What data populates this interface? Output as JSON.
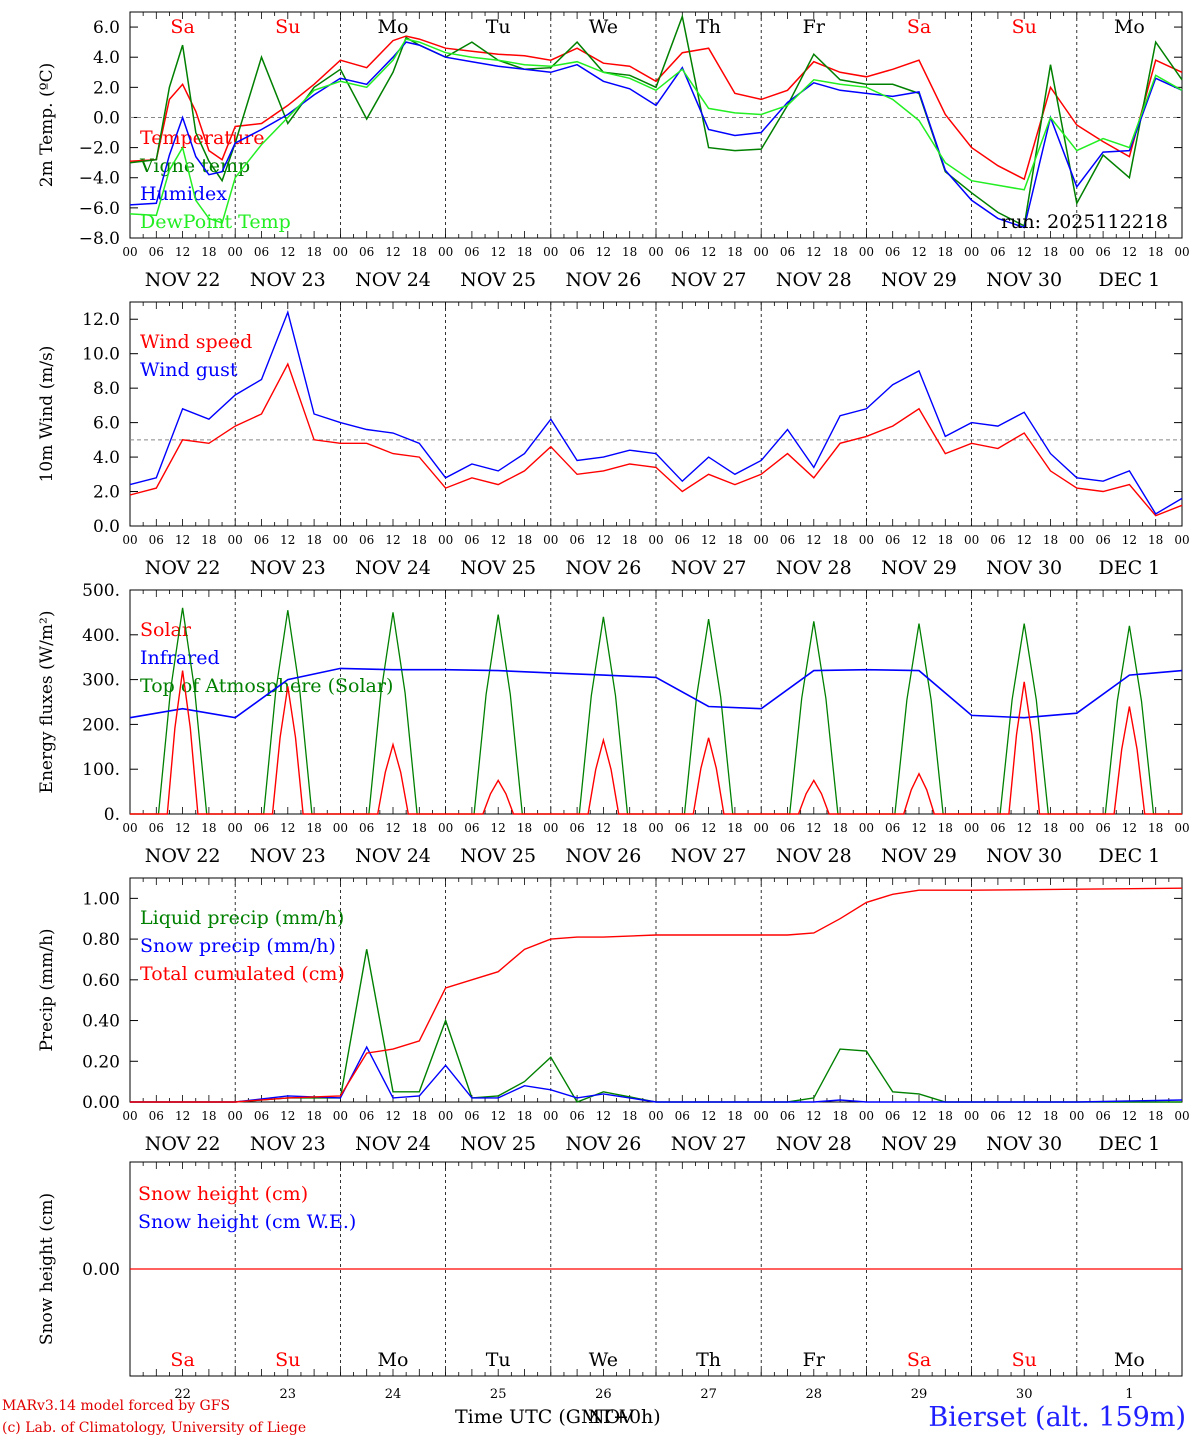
{
  "days_top": [
    {
      "label": "Sa",
      "weekend": true
    },
    {
      "label": "Su",
      "weekend": true
    },
    {
      "label": "Mo",
      "weekend": false
    },
    {
      "label": "Tu",
      "weekend": false
    },
    {
      "label": "We",
      "weekend": false
    },
    {
      "label": "Th",
      "weekend": false
    },
    {
      "label": "Fr",
      "weekend": false
    },
    {
      "label": "Sa",
      "weekend": true
    },
    {
      "label": "Su",
      "weekend": true
    },
    {
      "label": "Mo",
      "weekend": false
    }
  ],
  "date_labels": [
    "NOV 22",
    "NOV 23",
    "NOV 24",
    "NOV 25",
    "NOV 26",
    "NOV 27",
    "NOV 28",
    "NOV 29",
    "NOV 30",
    "DEC  1"
  ],
  "day_numbers": [
    "22",
    "23",
    "24",
    "25",
    "26",
    "27",
    "28",
    "29",
    "30",
    "1"
  ],
  "hour_ticks": [
    "00",
    "06",
    "12",
    "18"
  ],
  "footer": {
    "model": "MARv3.14 model forced by GFS",
    "lab": "(c) Lab. of Climatology, University of Liege",
    "xlabel": "Time UTC (GMT+0h)",
    "xlabel_overlap": "NOV",
    "station": "Bierset (alt. 159m)"
  },
  "colors": {
    "red": "#ff0000",
    "green": "#008000",
    "blue": "#0000ff",
    "lightgreen": "#22ee22",
    "weekend": "#ff0000",
    "text": "#000000"
  },
  "chart_data": [
    {
      "type": "line",
      "id": "temp",
      "ylabel": "2m Temp. (ºC)",
      "ylim": [
        -8,
        7
      ],
      "yticks": [
        6,
        4,
        2,
        0,
        -2,
        -4,
        -6,
        -8
      ],
      "ytick_labels": [
        "6.0",
        "4.0",
        "2.0",
        "0.0",
        "−2.0",
        "−4.0",
        "−6.0",
        "−8.0"
      ],
      "ref_line": 0,
      "annotation": "run: 2025112218",
      "x_hours": [
        0,
        6,
        9,
        12,
        15,
        18,
        21,
        24,
        30,
        36,
        42,
        48,
        54,
        60,
        63,
        66,
        72,
        78,
        84,
        90,
        96,
        102,
        108,
        114,
        120,
        126,
        132,
        138,
        144,
        150,
        156,
        162,
        168,
        174,
        180,
        186,
        192,
        198,
        204,
        210,
        216,
        222,
        228,
        234,
        240
      ],
      "series": [
        {
          "name": "Temperature",
          "color": "red",
          "values": [
            -2.9,
            -2.8,
            1.2,
            2.2,
            0.4,
            -2.2,
            -2.8,
            -0.6,
            -0.4,
            0.8,
            2.2,
            3.8,
            3.3,
            5.1,
            5.4,
            5.2,
            4.6,
            4.4,
            4.2,
            4.1,
            3.8,
            4.6,
            3.6,
            3.4,
            2.4,
            4.3,
            4.6,
            1.6,
            1.2,
            1.8,
            3.7,
            3.0,
            2.7,
            3.2,
            3.8,
            0.2,
            -2.0,
            -3.2,
            -4.1,
            2.0,
            -0.5,
            -1.6,
            -2.6,
            3.8,
            3.0
          ]
        },
        {
          "name": "Vigne temp",
          "color": "green",
          "values": [
            -3.0,
            -2.8,
            2.0,
            4.8,
            -1.0,
            -2.9,
            -4.2,
            -1.7,
            4.0,
            -0.4,
            2.0,
            3.2,
            -0.1,
            3.0,
            5.3,
            4.8,
            4.0,
            5.0,
            3.8,
            3.2,
            3.3,
            5.0,
            3.0,
            2.8,
            2.0,
            6.7,
            -2.0,
            -2.2,
            -2.1,
            0.8,
            4.2,
            2.5,
            2.2,
            2.2,
            1.6,
            -3.6,
            -5.0,
            -6.3,
            -7.2,
            3.5,
            -5.7,
            -2.5,
            -4.0,
            5.0,
            2.5
          ]
        },
        {
          "name": "Humidex",
          "color": "blue",
          "values": [
            -5.8,
            -5.7,
            -2.5,
            0.0,
            -2.6,
            -3.8,
            -3.6,
            -1.7,
            -0.8,
            0.2,
            1.5,
            2.6,
            2.2,
            4.0,
            5.0,
            4.8,
            4.0,
            3.7,
            3.4,
            3.2,
            3.0,
            3.5,
            2.4,
            1.9,
            0.8,
            3.3,
            -0.8,
            -1.2,
            -1.0,
            1.0,
            2.3,
            1.8,
            1.6,
            1.4,
            1.7,
            -3.5,
            -5.5,
            -6.7,
            -7.3,
            0.0,
            -4.6,
            -2.3,
            -2.2,
            2.6,
            1.8
          ]
        },
        {
          "name": "DewPoint Temp",
          "color": "lightgreen",
          "values": [
            -6.4,
            -6.5,
            -3.5,
            -2.0,
            -5.5,
            -6.7,
            -7.0,
            -4.0,
            -1.8,
            0.0,
            1.8,
            2.4,
            2.0,
            3.8,
            5.2,
            5.0,
            4.3,
            4.0,
            3.8,
            3.5,
            3.4,
            3.7,
            3.0,
            2.6,
            1.8,
            3.2,
            0.6,
            0.3,
            0.2,
            0.8,
            2.5,
            2.2,
            2.0,
            1.2,
            -0.2,
            -3.0,
            -4.2,
            -4.5,
            -4.8,
            0.0,
            -2.2,
            -1.4,
            -2.0,
            2.8,
            1.8
          ]
        }
      ]
    },
    {
      "type": "line",
      "id": "wind",
      "ylabel": "10m Wind (m/s)",
      "ylim": [
        0,
        13
      ],
      "yticks": [
        12,
        10,
        8,
        6,
        4,
        2,
        0
      ],
      "ytick_labels": [
        "12.0",
        "10.0",
        "8.0",
        "6.0",
        "4.0",
        "2.0",
        "0.0"
      ],
      "ref_line": 5,
      "x_hours": [
        0,
        6,
        12,
        18,
        24,
        30,
        36,
        42,
        48,
        54,
        60,
        66,
        72,
        78,
        84,
        90,
        96,
        102,
        108,
        114,
        120,
        126,
        132,
        138,
        144,
        150,
        156,
        162,
        168,
        174,
        180,
        186,
        192,
        198,
        204,
        210,
        216,
        222,
        228,
        234,
        240
      ],
      "series": [
        {
          "name": "Wind speed",
          "color": "red",
          "values": [
            1.8,
            2.2,
            5.0,
            4.8,
            5.8,
            6.5,
            9.4,
            5.0,
            4.8,
            4.8,
            4.2,
            4.0,
            2.2,
            2.8,
            2.4,
            3.2,
            4.6,
            3.0,
            3.2,
            3.6,
            3.4,
            2.0,
            3.0,
            2.4,
            3.0,
            4.2,
            2.8,
            4.8,
            5.2,
            5.8,
            6.8,
            4.2,
            4.8,
            4.5,
            5.4,
            3.2,
            2.2,
            2.0,
            2.4,
            0.6,
            1.2
          ]
        },
        {
          "name": "Wind gust",
          "color": "blue",
          "values": [
            2.4,
            2.8,
            6.8,
            6.2,
            7.6,
            8.5,
            12.4,
            6.5,
            6.0,
            5.6,
            5.4,
            4.8,
            2.8,
            3.6,
            3.2,
            4.2,
            6.2,
            3.8,
            4.0,
            4.4,
            4.2,
            2.6,
            4.0,
            3.0,
            3.8,
            5.6,
            3.4,
            6.4,
            6.8,
            8.2,
            9.0,
            5.2,
            6.0,
            5.8,
            6.6,
            4.2,
            2.8,
            2.6,
            3.2,
            0.7,
            1.6
          ]
        }
      ]
    },
    {
      "type": "line",
      "id": "energy",
      "ylabel": "Energy fluxes (W/m²)",
      "ylim": [
        0,
        500
      ],
      "yticks": [
        500,
        400,
        300,
        200,
        100,
        0
      ],
      "ytick_labels": [
        "500.",
        "400.",
        "300.",
        "200.",
        "100.",
        "0."
      ],
      "series": [
        {
          "name": "Solar",
          "color": "red",
          "day_peaks": [
            320,
            285,
            155,
            75,
            165,
            170,
            75,
            90,
            295,
            240
          ]
        },
        {
          "name": "Infrared",
          "color": "blue",
          "x_hours": [
            0,
            12,
            24,
            36,
            48,
            60,
            72,
            84,
            96,
            108,
            120,
            132,
            144,
            156,
            168,
            180,
            192,
            204,
            216,
            228,
            240
          ],
          "values": [
            215,
            235,
            215,
            300,
            325,
            322,
            322,
            320,
            315,
            310,
            305,
            240,
            235,
            320,
            322,
            320,
            220,
            215,
            225,
            310,
            320
          ]
        },
        {
          "name": "Top of Atmosphere (Solar)",
          "color": "green",
          "day_peaks": [
            460,
            455,
            450,
            445,
            440,
            435,
            430,
            425,
            425,
            420
          ]
        }
      ]
    },
    {
      "type": "line",
      "id": "precip",
      "ylabel": "Precip (mm/h)",
      "ylim": [
        0,
        1.1
      ],
      "yticks": [
        1.0,
        0.8,
        0.6,
        0.4,
        0.2,
        0.0
      ],
      "ytick_labels": [
        "1.00",
        "0.80",
        "0.60",
        "0.40",
        "0.20",
        "0.00"
      ],
      "x_hours": [
        0,
        24,
        36,
        48,
        54,
        60,
        66,
        72,
        78,
        84,
        90,
        96,
        102,
        108,
        120,
        144,
        150,
        156,
        162,
        168,
        174,
        180,
        186,
        192,
        216,
        240
      ],
      "series": [
        {
          "name": "Liquid precip (mm/h)",
          "color": "green",
          "values": [
            0,
            0,
            0.02,
            0.02,
            0.75,
            0.05,
            0.05,
            0.4,
            0.02,
            0.03,
            0.1,
            0.22,
            0.0,
            0.05,
            0.0,
            0.0,
            0.0,
            0.02,
            0.26,
            0.25,
            0.05,
            0.04,
            0.0,
            0.0,
            0.0,
            0.0
          ]
        },
        {
          "name": "Snow precip (mm/h)",
          "color": "blue",
          "values": [
            0,
            0,
            0.03,
            0.02,
            0.27,
            0.02,
            0.03,
            0.18,
            0.02,
            0.02,
            0.08,
            0.06,
            0.02,
            0.04,
            0.0,
            0.0,
            0.0,
            0.0,
            0.01,
            0.0,
            0.0,
            0.0,
            0.0,
            0.0,
            0.0,
            0.01
          ]
        },
        {
          "name": "Total cumulated (cm)",
          "color": "red",
          "values": [
            0,
            0,
            0.02,
            0.03,
            0.24,
            0.26,
            0.3,
            0.56,
            0.6,
            0.64,
            0.75,
            0.8,
            0.81,
            0.81,
            0.82,
            0.82,
            0.82,
            0.83,
            0.9,
            0.98,
            1.02,
            1.04,
            1.04,
            1.04,
            1.045,
            1.05
          ]
        }
      ]
    },
    {
      "type": "line",
      "id": "snow",
      "ylabel": "Snow height (cm)",
      "yticks": [
        0
      ],
      "ytick_labels": [
        "0.00"
      ],
      "series": [
        {
          "name": "Snow height (cm)",
          "color": "red",
          "values": [
            0,
            0
          ]
        },
        {
          "name": "Snow height (cm W.E.)",
          "color": "blue",
          "values": [
            0,
            0
          ]
        }
      ]
    }
  ]
}
